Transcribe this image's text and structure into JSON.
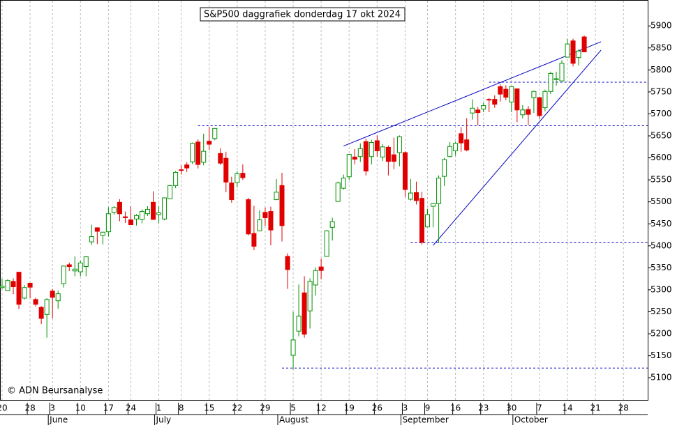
{
  "chart_data": {
    "type": "candlestick",
    "title": "S&P500 daggrafiek donderdag 17 okt 2024",
    "copyright": "© ADN Beursanalyse",
    "categories": [
      "20",
      null,
      null,
      null,
      null,
      "28",
      null,
      null,
      null,
      "3",
      null,
      null,
      null,
      null,
      "10",
      null,
      null,
      null,
      null,
      "17",
      null,
      null,
      null,
      "24",
      null,
      null,
      null,
      null,
      "1",
      null,
      null,
      null,
      "8",
      null,
      null,
      null,
      null,
      "15",
      null,
      null,
      null,
      null,
      "22",
      null,
      null,
      null,
      null,
      "29",
      null,
      null,
      null,
      null,
      "5",
      null,
      null,
      null,
      null,
      "12",
      null,
      null,
      null,
      null,
      "19",
      null,
      null,
      null,
      null,
      "26",
      null,
      null,
      null,
      null,
      "3",
      null,
      null,
      null,
      "9",
      null,
      null,
      null,
      null,
      "16",
      null,
      null,
      null,
      null,
      "23",
      null,
      null,
      null,
      null,
      "30",
      null,
      null,
      null,
      null,
      "7",
      null,
      null,
      null,
      null,
      "14",
      null,
      null,
      null,
      null,
      "21",
      null,
      null,
      null,
      null,
      "28"
    ],
    "months": [
      null,
      null,
      null,
      null,
      null,
      null,
      null,
      null,
      null,
      "June",
      null,
      null,
      null,
      null,
      null,
      null,
      null,
      null,
      null,
      null,
      null,
      null,
      null,
      null,
      null,
      null,
      null,
      null,
      "July",
      null,
      null,
      null,
      null,
      null,
      null,
      null,
      null,
      null,
      null,
      null,
      null,
      null,
      null,
      null,
      null,
      null,
      null,
      null,
      null,
      null,
      "August",
      null,
      null,
      null,
      null,
      null,
      null,
      null,
      null,
      null,
      null,
      null,
      null,
      null,
      null,
      null,
      null,
      null,
      null,
      null,
      null,
      null,
      "September",
      null,
      null,
      null,
      null,
      null,
      null,
      null,
      null,
      null,
      null,
      null,
      null,
      null,
      null,
      null,
      null,
      null,
      null,
      null,
      "October",
      null,
      null,
      null,
      null,
      null,
      null,
      null,
      null,
      null,
      null,
      null,
      null,
      null,
      null,
      null,
      null,
      null,
      null,
      null
    ],
    "open": [
      5305,
      5298,
      5319,
      5340,
      5281,
      5315,
      5278,
      5260,
      5244,
      5297,
      5275,
      5314,
      5357,
      5343,
      5341,
      5353,
      5409,
      5441,
      5424,
      5432,
      5476,
      5499,
      5466,
      5459,
      5461,
      5460,
      5473,
      5499,
      5471,
      5461,
      5507,
      5537,
      5573,
      5584,
      5591,
      5636,
      5590,
      5638,
      5644,
      5610,
      5599,
      5543,
      5544,
      5565,
      5505,
      5428,
      5434,
      5476,
      5478,
      5505,
      5537,
      5376,
      5151,
      5206,
      5293,
      5252,
      5311,
      5352,
      5376,
      5442,
      5501,
      5531,
      5557,
      5602,
      5603,
      5637,
      5603,
      5639,
      5602,
      5624,
      5607,
      5612,
      5612,
      5506,
      5521,
      5508,
      5443,
      5490,
      5496,
      5558,
      5603,
      5616,
      5655,
      5641,
      5702,
      5709,
      5711,
      5733,
      5733,
      5762,
      5756,
      5727,
      5757,
      5698,
      5710,
      5737,
      5737,
      5714,
      5751,
      5778,
      5775,
      5829,
      5866,
      5828,
      5875,
      null,
      null,
      null,
      null,
      null,
      null,
      null
    ],
    "high": [
      5325,
      5324,
      5326,
      5341,
      5311,
      5316,
      5282,
      5263,
      5281,
      5302,
      5298,
      5355,
      5362,
      5376,
      5366,
      5376,
      5448,
      5442,
      5432,
      5488,
      5490,
      5506,
      5478,
      5490,
      5472,
      5483,
      5490,
      5524,
      5490,
      5510,
      5539,
      5570,
      5583,
      5590,
      5635,
      5642,
      5655,
      5670,
      5667,
      5622,
      5614,
      5557,
      5570,
      5585,
      5509,
      5491,
      5481,
      5487,
      5489,
      5552,
      5566,
      5383,
      5250,
      5312,
      5331,
      5326,
      5351,
      5371,
      5436,
      5464,
      5546,
      5562,
      5608,
      5620,
      5633,
      5644,
      5641,
      5651,
      5631,
      5628,
      5646,
      5651,
      5615,
      5552,
      5546,
      5523,
      5484,
      5497,
      5560,
      5600,
      5636,
      5637,
      5670,
      5690,
      5733,
      5716,
      5725,
      5736,
      5742,
      5767,
      5765,
      5763,
      5757,
      5720,
      5718,
      5753,
      5739,
      5755,
      5796,
      5796,
      5822,
      5871,
      5871,
      5847,
      5878,
      null,
      null,
      null,
      null,
      null,
      null,
      null
    ],
    "low": [
      5302,
      5297,
      5290,
      5256,
      5278,
      5281,
      5262,
      5222,
      5191,
      5235,
      5257,
      5305,
      5343,
      5331,
      5331,
      5331,
      5402,
      5404,
      5403,
      5421,
      5471,
      5456,
      5452,
      5447,
      5446,
      5451,
      5468,
      5460,
      5452,
      5458,
      5507,
      5531,
      5562,
      5568,
      5586,
      5576,
      5583,
      5618,
      5640,
      5584,
      5522,
      5498,
      5533,
      5550,
      5424,
      5390,
      5433,
      5445,
      5401,
      5504,
      5410,
      5302,
      5119,
      5194,
      5191,
      5212,
      5287,
      5324,
      5376,
      5412,
      5501,
      5528,
      5550,
      5585,
      5591,
      5560,
      5585,
      5603,
      5593,
      5560,
      5574,
      5581,
      5511,
      5503,
      5494,
      5403,
      5442,
      5442,
      5406,
      5536,
      5601,
      5605,
      5614,
      5615,
      5687,
      5674,
      5704,
      5704,
      5714,
      5728,
      5731,
      5704,
      5681,
      5690,
      5675,
      5702,
      5689,
      5706,
      5745,
      5764,
      5775,
      5829,
      5808,
      5810,
      5840,
      null,
      null,
      null,
      null,
      null,
      null,
      null
    ],
    "close": [
      5308,
      5321,
      5307,
      5267,
      5305,
      5306,
      5267,
      5235,
      5278,
      5283,
      5291,
      5354,
      5353,
      5347,
      5361,
      5375,
      5421,
      5433,
      5431,
      5473,
      5487,
      5473,
      5464,
      5448,
      5469,
      5478,
      5483,
      5460,
      5475,
      5509,
      5537,
      5567,
      5572,
      5577,
      5633,
      5585,
      5615,
      5631,
      5667,
      5588,
      5545,
      5505,
      5564,
      5555,
      5427,
      5399,
      5459,
      5464,
      5436,
      5522,
      5446,
      5346,
      5186,
      5240,
      5199,
      5319,
      5344,
      5344,
      5434,
      5455,
      5543,
      5554,
      5608,
      5597,
      5621,
      5570,
      5635,
      5616,
      5625,
      5592,
      5592,
      5648,
      5528,
      5520,
      5503,
      5408,
      5471,
      5496,
      5554,
      5596,
      5626,
      5633,
      5634,
      5618,
      5713,
      5703,
      5719,
      5732,
      5722,
      5745,
      5738,
      5762,
      5709,
      5709,
      5699,
      5751,
      5696,
      5751,
      5792,
      5780,
      5815,
      5859,
      5815,
      5843,
      5841,
      null,
      null,
      null,
      null,
      null,
      null,
      null
    ],
    "up_color": "#009000",
    "down_color": "#e00000",
    "line_color": "#0000c0",
    "levels": [
      {
        "value": 5122,
        "from": 50
      },
      {
        "value": 5407,
        "from": 73
      },
      {
        "value": 5673,
        "from": 35
      },
      {
        "value": 5772,
        "from": 87
      }
    ],
    "trendlines": [
      {
        "from": [
          61,
          5627
        ],
        "to": [
          107,
          5864
        ]
      },
      {
        "from": [
          77,
          5401
        ],
        "to": [
          107,
          5845
        ]
      }
    ],
    "ylim": [
      5048,
      5959
    ],
    "yticks": [
      5100,
      5150,
      5200,
      5250,
      5300,
      5350,
      5400,
      5450,
      5500,
      5550,
      5600,
      5650,
      5700,
      5750,
      5800,
      5850,
      5900
    ]
  }
}
